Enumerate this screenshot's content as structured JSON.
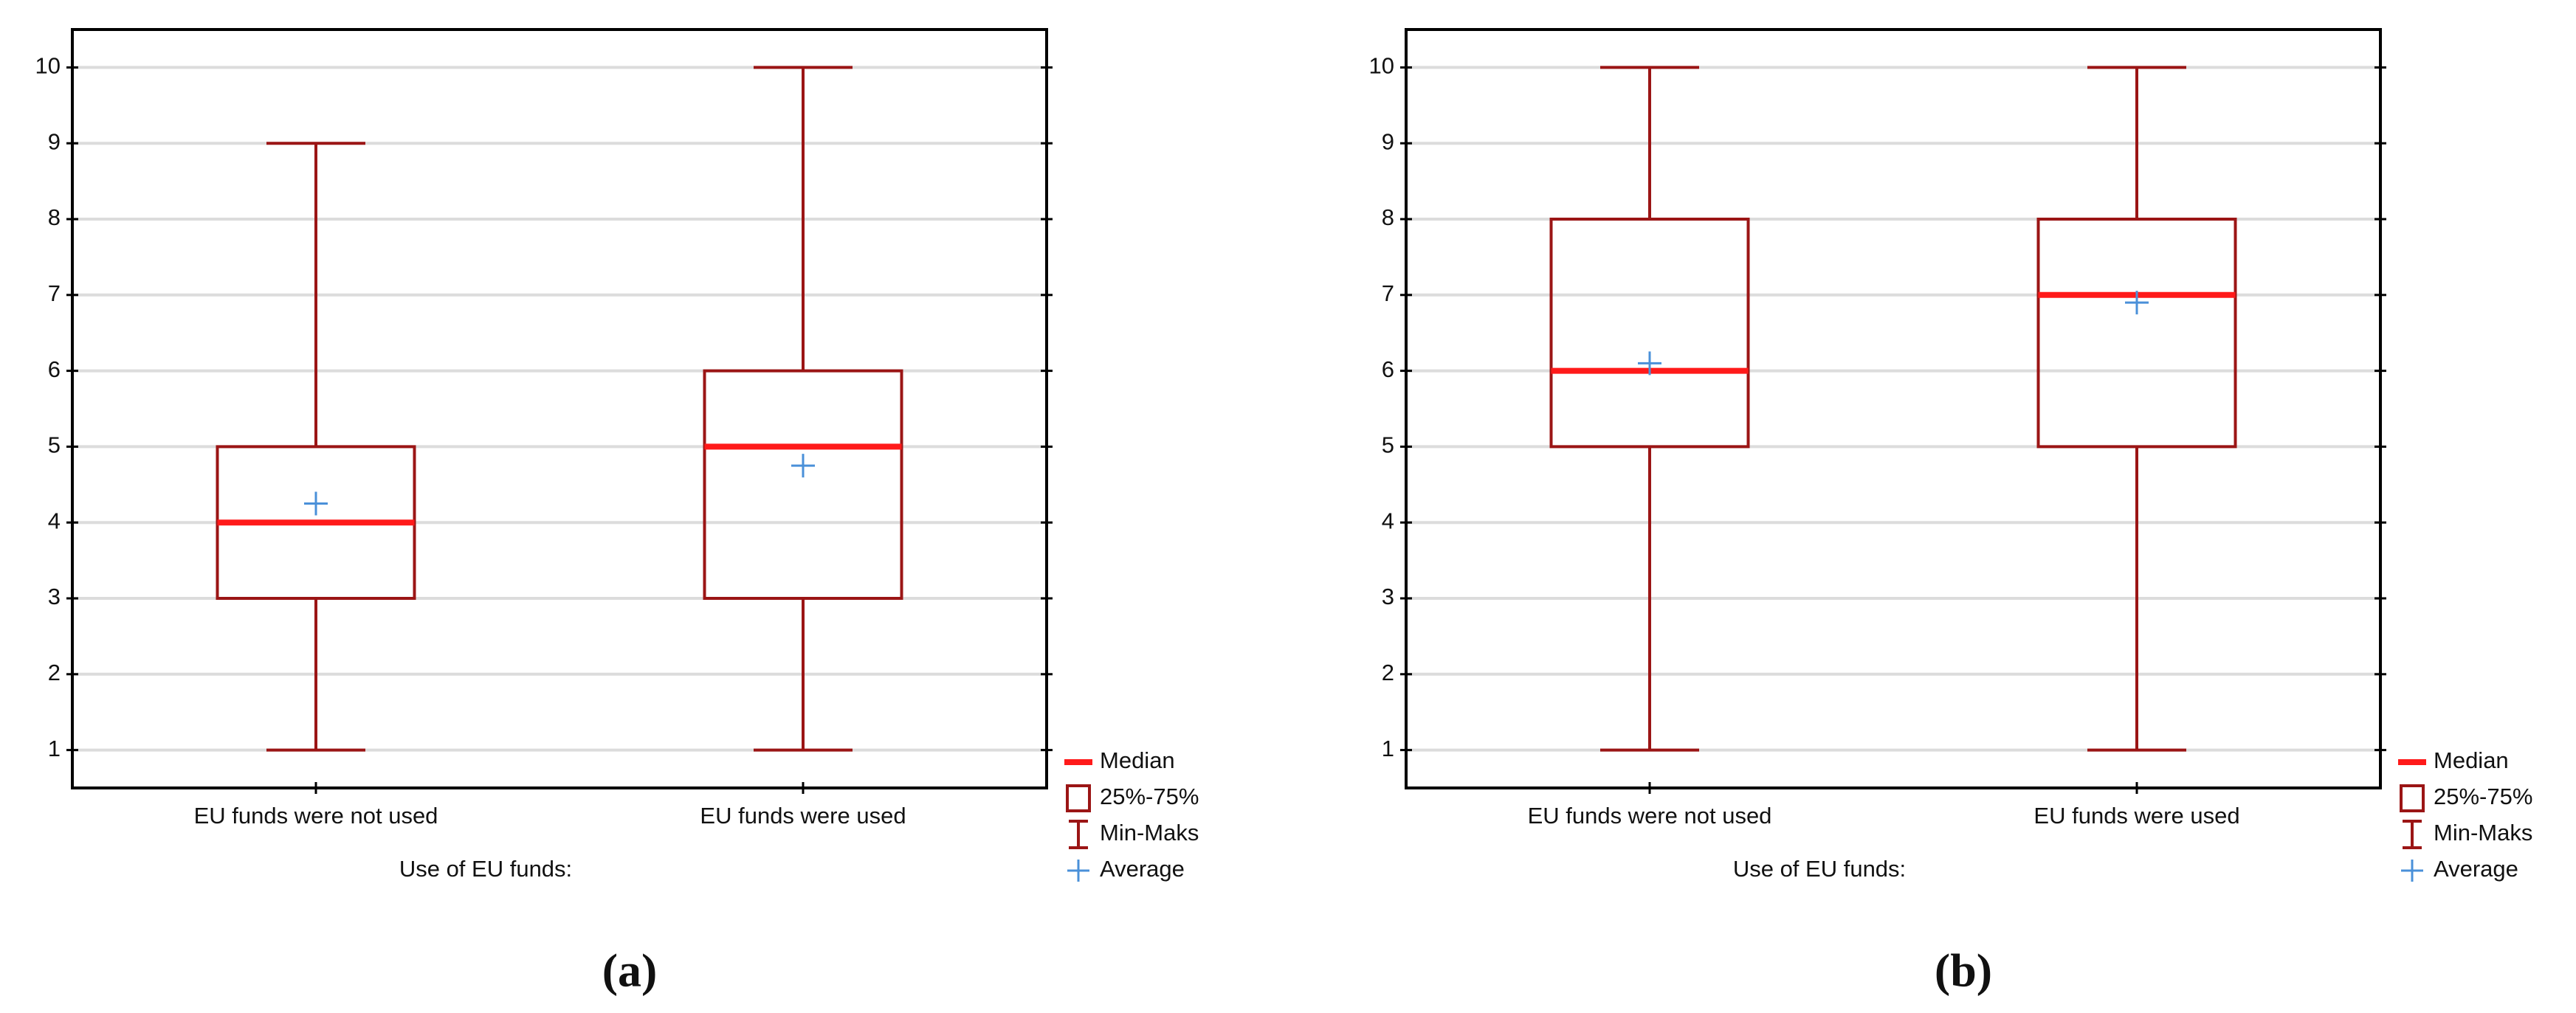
{
  "chart_data": [
    {
      "type": "box",
      "x_label": "Use of EU funds:",
      "caption": "(a)",
      "categories": [
        "EU funds were not used",
        "EU funds were used"
      ],
      "boxes": [
        {
          "min": 1,
          "q1": 3,
          "median": 4,
          "q3": 5,
          "max": 9,
          "mean": 4.25
        },
        {
          "min": 1,
          "q1": 3,
          "median": 5,
          "q3": 6,
          "max": 10,
          "mean": 4.75
        }
      ],
      "ylim": [
        0.5,
        10.5
      ],
      "yticks": [
        1,
        2,
        3,
        4,
        5,
        6,
        7,
        8,
        9,
        10
      ],
      "grid": true,
      "box_color": "#9b1515",
      "median_color": "#ff1a1a",
      "mean_color": "#4a90d9",
      "legend": {
        "median": "Median",
        "box": "25%-75%",
        "whisker": "Min-Maks",
        "mean": "Average"
      }
    },
    {
      "type": "box",
      "x_label": "Use of EU funds:",
      "caption": "(b)",
      "categories": [
        "EU funds were not used",
        "EU funds were used"
      ],
      "boxes": [
        {
          "min": 1,
          "q1": 5,
          "median": 6,
          "q3": 8,
          "max": 10,
          "mean": 6.1
        },
        {
          "min": 1,
          "q1": 5,
          "median": 7,
          "q3": 8,
          "max": 10,
          "mean": 6.9
        }
      ],
      "ylim": [
        0.5,
        10.5
      ],
      "yticks": [
        1,
        2,
        3,
        4,
        5,
        6,
        7,
        8,
        9,
        10
      ],
      "grid": true,
      "box_color": "#9b1515",
      "median_color": "#ff1a1a",
      "mean_color": "#4a90d9",
      "legend": {
        "median": "Median",
        "box": "25%-75%",
        "whisker": "Min-Maks",
        "mean": "Average"
      }
    }
  ]
}
